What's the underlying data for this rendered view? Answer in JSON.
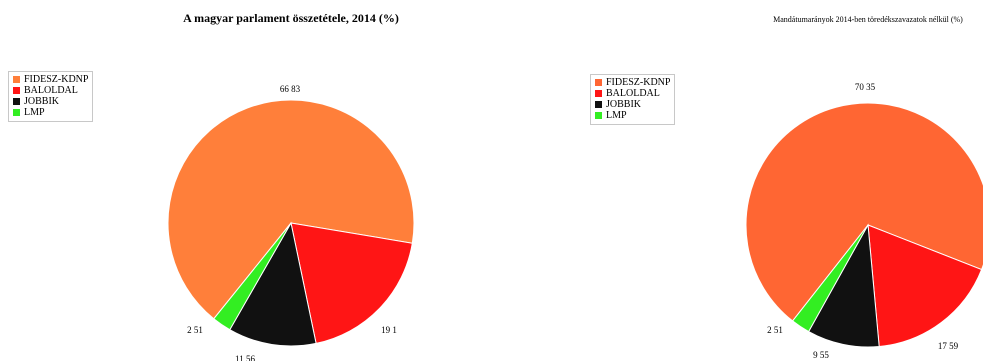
{
  "chart_data": [
    {
      "type": "pie",
      "title": "A magyar parlament összetétele, 2014 (%)",
      "legend_position": "top-left",
      "series": [
        {
          "categories": [
            "FIDESZ-KDNP",
            "BALOLDAL",
            "JOBBIK",
            "LMP"
          ],
          "values": [
            66.83,
            19.1,
            11.56,
            2.51
          ],
          "labels": [
            "66 83",
            "19 1",
            "11 56",
            "2 51"
          ],
          "colors": [
            "#ff7f3a",
            "#ff1515",
            "#111111",
            "#33ee22"
          ]
        }
      ]
    },
    {
      "type": "pie",
      "title": "Mandátumarányok 2014-ben töredékszavazatok nélkül (%)",
      "legend_position": "top-left",
      "series": [
        {
          "categories": [
            "FIDESZ-KDNP",
            "BALOLDAL",
            "JOBBIK",
            "LMP"
          ],
          "values": [
            70.35,
            17.59,
            9.55,
            2.51
          ],
          "labels": [
            "70 35",
            "17 59",
            "9 55",
            "2 51"
          ],
          "colors": [
            "#ff6633",
            "#ff1515",
            "#111111",
            "#33ee22"
          ]
        }
      ]
    }
  ]
}
